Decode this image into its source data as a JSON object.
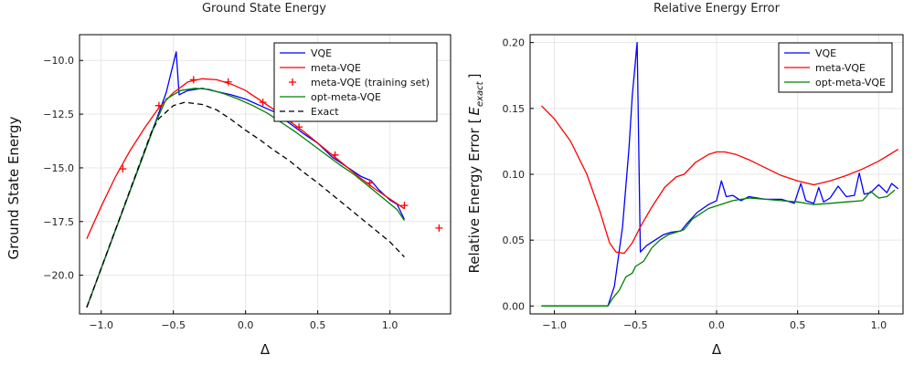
{
  "chart_data": [
    {
      "type": "line",
      "title": "Ground State Energy",
      "xlabel": "Δ",
      "ylabel": "Ground State Energy",
      "xlim": [
        -1.15,
        1.42
      ],
      "ylim": [
        -21.8,
        -8.8
      ],
      "xticks": [
        -1.0,
        -0.5,
        0.0,
        0.5,
        1.0
      ],
      "xtick_labels": [
        "−1.0",
        "−0.5",
        "0.0",
        "0.5",
        "1.0"
      ],
      "yticks": [
        -20.0,
        -17.5,
        -15.0,
        -12.5,
        -10.0
      ],
      "ytick_labels": [
        "−20.0",
        "−17.5",
        "−15.0",
        "−12.5",
        "−10.0"
      ],
      "grid": true,
      "legend_position": "top-right",
      "series": [
        {
          "name": "VQE",
          "color": "#0000ff",
          "style": "solid",
          "points": [
            [
              -1.1,
              -21.5
            ],
            [
              -0.62,
              -12.8
            ],
            [
              -0.55,
              -11.5
            ],
            [
              -0.48,
              -9.6
            ],
            [
              -0.46,
              -11.6
            ],
            [
              -0.4,
              -11.4
            ],
            [
              -0.3,
              -11.3
            ],
            [
              -0.2,
              -11.45
            ],
            [
              -0.1,
              -11.6
            ],
            [
              0.0,
              -11.8
            ],
            [
              0.1,
              -12.1
            ],
            [
              0.2,
              -12.4
            ],
            [
              0.3,
              -12.9
            ],
            [
              0.4,
              -13.4
            ],
            [
              0.5,
              -13.85
            ],
            [
              0.6,
              -14.5
            ],
            [
              0.7,
              -14.95
            ],
            [
              0.8,
              -15.4
            ],
            [
              0.87,
              -15.6
            ],
            [
              0.92,
              -16.0
            ],
            [
              1.0,
              -16.5
            ],
            [
              1.05,
              -16.7
            ],
            [
              1.1,
              -17.4
            ]
          ]
        },
        {
          "name": "meta-VQE",
          "color": "#ff0000",
          "style": "solid",
          "points": [
            [
              -1.1,
              -18.3
            ],
            [
              -1.0,
              -16.8
            ],
            [
              -0.9,
              -15.4
            ],
            [
              -0.8,
              -14.2
            ],
            [
              -0.7,
              -13.15
            ],
            [
              -0.6,
              -12.2
            ],
            [
              -0.5,
              -11.5
            ],
            [
              -0.4,
              -11.0
            ],
            [
              -0.3,
              -10.85
            ],
            [
              -0.2,
              -10.9
            ],
            [
              -0.1,
              -11.1
            ],
            [
              0.0,
              -11.4
            ],
            [
              0.1,
              -11.85
            ],
            [
              0.2,
              -12.3
            ],
            [
              0.3,
              -12.8
            ],
            [
              0.4,
              -13.3
            ],
            [
              0.5,
              -13.85
            ],
            [
              0.6,
              -14.4
            ],
            [
              0.7,
              -14.95
            ],
            [
              0.8,
              -15.5
            ],
            [
              0.9,
              -16.0
            ],
            [
              1.0,
              -16.45
            ],
            [
              1.1,
              -16.9
            ]
          ]
        },
        {
          "name": "meta-VQE (training set)",
          "color": "#ff0000",
          "style": "marker-plus",
          "points": [
            [
              -0.85,
              -15.05
            ],
            [
              -0.6,
              -12.1
            ],
            [
              -0.36,
              -10.9
            ],
            [
              -0.12,
              -11.0
            ],
            [
              0.12,
              -11.95
            ],
            [
              0.37,
              -13.1
            ],
            [
              0.62,
              -14.4
            ],
            [
              0.86,
              -15.7
            ],
            [
              1.1,
              -16.75
            ],
            [
              1.34,
              -17.8
            ]
          ]
        },
        {
          "name": "opt-meta-VQE",
          "color": "#008000",
          "style": "solid",
          "points": [
            [
              -1.1,
              -21.5
            ],
            [
              -0.62,
              -12.85
            ],
            [
              -0.55,
              -11.8
            ],
            [
              -0.45,
              -11.4
            ],
            [
              -0.35,
              -11.3
            ],
            [
              -0.25,
              -11.35
            ],
            [
              -0.15,
              -11.55
            ],
            [
              -0.05,
              -11.8
            ],
            [
              0.05,
              -12.1
            ],
            [
              0.15,
              -12.45
            ],
            [
              0.25,
              -12.9
            ],
            [
              0.35,
              -13.35
            ],
            [
              0.45,
              -13.85
            ],
            [
              0.55,
              -14.35
            ],
            [
              0.65,
              -14.85
            ],
            [
              0.75,
              -15.3
            ],
            [
              0.85,
              -15.85
            ],
            [
              0.95,
              -16.4
            ],
            [
              1.05,
              -16.95
            ],
            [
              1.1,
              -17.45
            ]
          ]
        },
        {
          "name": "Exact",
          "color": "#000000",
          "style": "dashed",
          "points": [
            [
              -1.1,
              -21.5
            ],
            [
              -0.65,
              -13.3
            ],
            [
              -0.6,
              -12.7
            ],
            [
              -0.5,
              -12.1
            ],
            [
              -0.42,
              -11.95
            ],
            [
              -0.3,
              -12.05
            ],
            [
              -0.2,
              -12.3
            ],
            [
              -0.1,
              -12.75
            ],
            [
              0.0,
              -13.25
            ],
            [
              0.1,
              -13.7
            ],
            [
              0.2,
              -14.2
            ],
            [
              0.3,
              -14.65
            ],
            [
              0.4,
              -15.2
            ],
            [
              0.5,
              -15.7
            ],
            [
              0.6,
              -16.25
            ],
            [
              0.7,
              -16.8
            ],
            [
              0.8,
              -17.35
            ],
            [
              0.9,
              -17.9
            ],
            [
              1.0,
              -18.45
            ],
            [
              1.1,
              -19.15
            ]
          ]
        }
      ]
    },
    {
      "type": "line",
      "title": "Relative Energy Error",
      "xlabel": "Δ",
      "ylabel": "Relative Energy Error",
      "ylabel_math": "E",
      "ylabel_math_sub": "exact",
      "xlim": [
        -1.15,
        1.15
      ],
      "ylim": [
        -0.006,
        0.206
      ],
      "xticks": [
        -1.0,
        -0.5,
        0.0,
        0.5,
        1.0
      ],
      "xtick_labels": [
        "−1.0",
        "−0.5",
        "0.0",
        "0.5",
        "1.0"
      ],
      "yticks": [
        0.0,
        0.05,
        0.1,
        0.15,
        0.2
      ],
      "ytick_labels": [
        "0.00",
        "0.05",
        "0.10",
        "0.15",
        "0.20"
      ],
      "grid": true,
      "legend_position": "top-right",
      "series": [
        {
          "name": "VQE",
          "color": "#0000ff",
          "style": "solid",
          "points": [
            [
              -1.08,
              0.0
            ],
            [
              -0.67,
              0.0
            ],
            [
              -0.63,
              0.015
            ],
            [
              -0.58,
              0.06
            ],
            [
              -0.54,
              0.12
            ],
            [
              -0.52,
              0.16
            ],
            [
              -0.49,
              0.2
            ],
            [
              -0.47,
              0.041
            ],
            [
              -0.43,
              0.046
            ],
            [
              -0.38,
              0.05
            ],
            [
              -0.33,
              0.054
            ],
            [
              -0.28,
              0.056
            ],
            [
              -0.22,
              0.057
            ],
            [
              -0.18,
              0.063
            ],
            [
              -0.12,
              0.071
            ],
            [
              -0.05,
              0.077
            ],
            [
              0.0,
              0.08
            ],
            [
              0.03,
              0.095
            ],
            [
              0.06,
              0.083
            ],
            [
              0.1,
              0.084
            ],
            [
              0.15,
              0.08
            ],
            [
              0.2,
              0.083
            ],
            [
              0.3,
              0.081
            ],
            [
              0.4,
              0.081
            ],
            [
              0.48,
              0.078
            ],
            [
              0.52,
              0.093
            ],
            [
              0.55,
              0.08
            ],
            [
              0.6,
              0.078
            ],
            [
              0.63,
              0.09
            ],
            [
              0.66,
              0.079
            ],
            [
              0.7,
              0.082
            ],
            [
              0.75,
              0.091
            ],
            [
              0.8,
              0.083
            ],
            [
              0.85,
              0.084
            ],
            [
              0.88,
              0.101
            ],
            [
              0.91,
              0.085
            ],
            [
              0.95,
              0.086
            ],
            [
              1.0,
              0.092
            ],
            [
              1.05,
              0.086
            ],
            [
              1.08,
              0.093
            ],
            [
              1.12,
              0.089
            ]
          ]
        },
        {
          "name": "meta-VQE",
          "color": "#ff0000",
          "style": "solid",
          "points": [
            [
              -1.08,
              0.152
            ],
            [
              -1.0,
              0.142
            ],
            [
              -0.9,
              0.125
            ],
            [
              -0.8,
              0.1
            ],
            [
              -0.72,
              0.072
            ],
            [
              -0.66,
              0.048
            ],
            [
              -0.62,
              0.041
            ],
            [
              -0.57,
              0.04
            ],
            [
              -0.52,
              0.048
            ],
            [
              -0.47,
              0.06
            ],
            [
              -0.4,
              0.075
            ],
            [
              -0.32,
              0.09
            ],
            [
              -0.25,
              0.098
            ],
            [
              -0.2,
              0.1
            ],
            [
              -0.13,
              0.109
            ],
            [
              -0.05,
              0.115
            ],
            [
              0.0,
              0.117
            ],
            [
              0.05,
              0.117
            ],
            [
              0.12,
              0.115
            ],
            [
              0.2,
              0.111
            ],
            [
              0.3,
              0.105
            ],
            [
              0.4,
              0.099
            ],
            [
              0.5,
              0.095
            ],
            [
              0.6,
              0.092
            ],
            [
              0.7,
              0.095
            ],
            [
              0.8,
              0.099
            ],
            [
              0.9,
              0.104
            ],
            [
              1.0,
              0.11
            ],
            [
              1.12,
              0.119
            ]
          ]
        },
        {
          "name": "opt-meta-VQE",
          "color": "#008000",
          "style": "solid",
          "points": [
            [
              -1.08,
              0.0
            ],
            [
              -0.67,
              0.0
            ],
            [
              -0.64,
              0.006
            ],
            [
              -0.6,
              0.012
            ],
            [
              -0.56,
              0.022
            ],
            [
              -0.52,
              0.025
            ],
            [
              -0.5,
              0.03
            ],
            [
              -0.45,
              0.034
            ],
            [
              -0.4,
              0.044
            ],
            [
              -0.35,
              0.05
            ],
            [
              -0.3,
              0.054
            ],
            [
              -0.25,
              0.056
            ],
            [
              -0.2,
              0.058
            ],
            [
              -0.15,
              0.066
            ],
            [
              -0.1,
              0.07
            ],
            [
              -0.05,
              0.074
            ],
            [
              0.0,
              0.076
            ],
            [
              0.05,
              0.078
            ],
            [
              0.1,
              0.08
            ],
            [
              0.2,
              0.082
            ],
            [
              0.3,
              0.081
            ],
            [
              0.4,
              0.08
            ],
            [
              0.5,
              0.079
            ],
            [
              0.6,
              0.077
            ],
            [
              0.7,
              0.078
            ],
            [
              0.8,
              0.079
            ],
            [
              0.9,
              0.08
            ],
            [
              0.95,
              0.087
            ],
            [
              1.0,
              0.082
            ],
            [
              1.05,
              0.083
            ],
            [
              1.1,
              0.088
            ]
          ]
        }
      ]
    }
  ]
}
